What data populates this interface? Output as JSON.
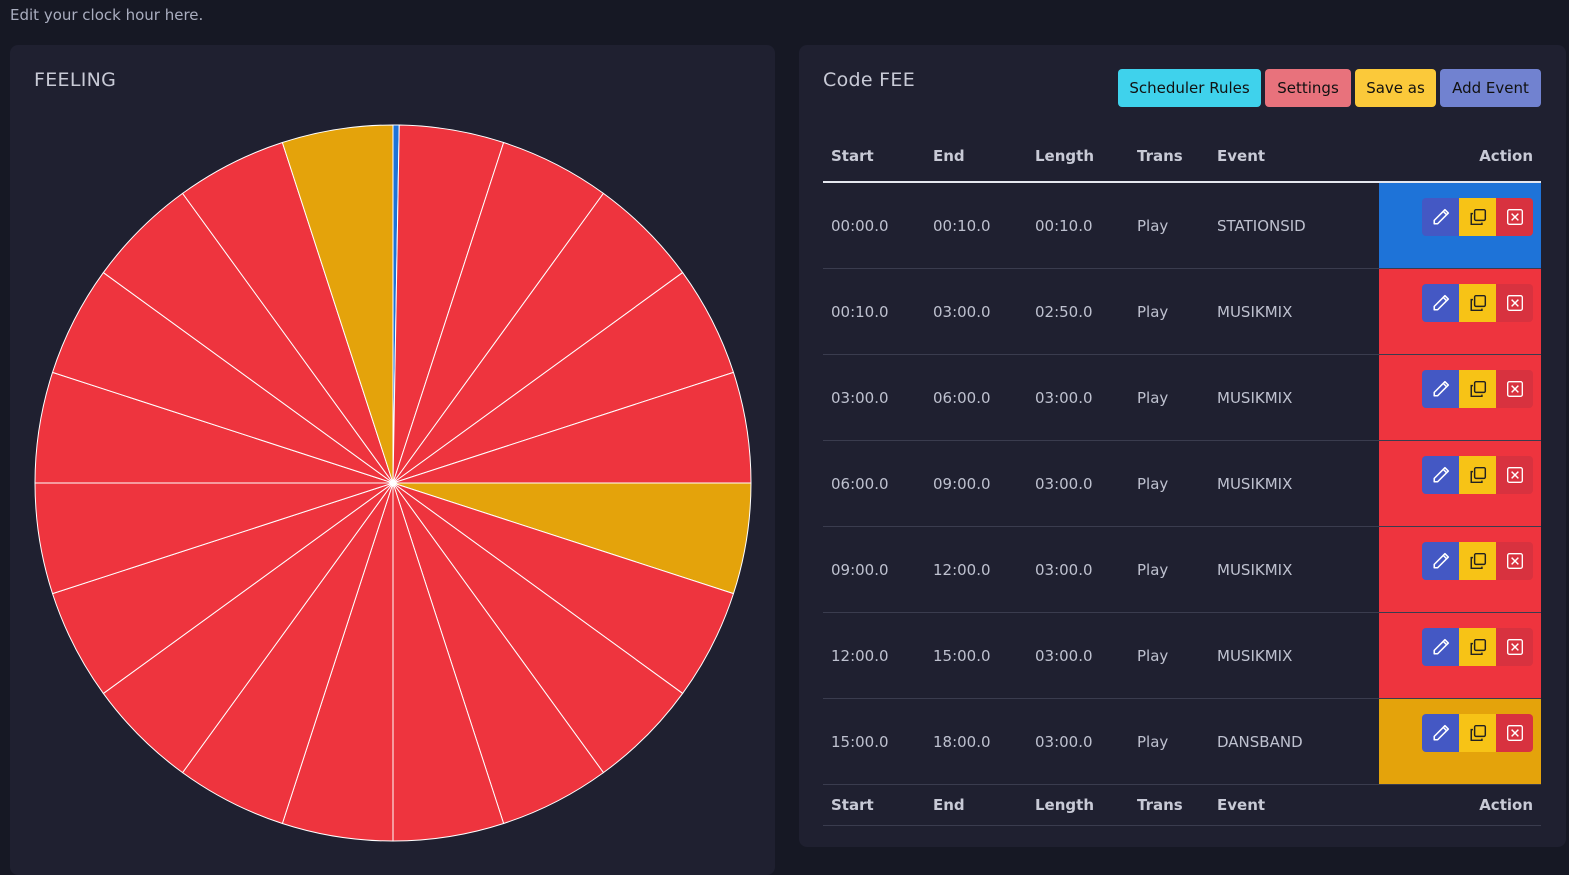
{
  "page": {
    "hint": "Edit your clock hour here."
  },
  "clock": {
    "title": "FEELING",
    "chart_data": {
      "type": "pie",
      "title": "FEELING",
      "unit": "seconds",
      "slices": [
        {
          "label": "STATIONSID",
          "start": 0,
          "length": 10,
          "color": "#1e73d8"
        },
        {
          "label": "MUSIKMIX",
          "start": 10,
          "length": 170,
          "color": "#ee343e"
        },
        {
          "label": "MUSIKMIX",
          "start": 180,
          "length": 180,
          "color": "#ee343e"
        },
        {
          "label": "MUSIKMIX",
          "start": 360,
          "length": 180,
          "color": "#ee343e"
        },
        {
          "label": "MUSIKMIX",
          "start": 540,
          "length": 180,
          "color": "#ee343e"
        },
        {
          "label": "MUSIKMIX",
          "start": 720,
          "length": 180,
          "color": "#ee343e"
        },
        {
          "label": "DANSBAND",
          "start": 900,
          "length": 180,
          "color": "#e4a30b"
        },
        {
          "label": "MUSIKMIX",
          "start": 1080,
          "length": 180,
          "color": "#ee343e"
        },
        {
          "label": "MUSIKMIX",
          "start": 1260,
          "length": 180,
          "color": "#ee343e"
        },
        {
          "label": "MUSIKMIX",
          "start": 1440,
          "length": 180,
          "color": "#ee343e"
        },
        {
          "label": "MUSIKMIX",
          "start": 1620,
          "length": 180,
          "color": "#ee343e"
        },
        {
          "label": "MUSIKMIX",
          "start": 1800,
          "length": 180,
          "color": "#ee343e"
        },
        {
          "label": "MUSIKMIX",
          "start": 1980,
          "length": 180,
          "color": "#ee343e"
        },
        {
          "label": "MUSIKMIX",
          "start": 2160,
          "length": 180,
          "color": "#ee343e"
        },
        {
          "label": "MUSIKMIX",
          "start": 2340,
          "length": 180,
          "color": "#ee343e"
        },
        {
          "label": "MUSIKMIX",
          "start": 2520,
          "length": 180,
          "color": "#ee343e"
        },
        {
          "label": "MUSIKMIX",
          "start": 2700,
          "length": 180,
          "color": "#ee343e"
        },
        {
          "label": "MUSIKMIX",
          "start": 2880,
          "length": 180,
          "color": "#ee343e"
        },
        {
          "label": "MUSIKMIX",
          "start": 3060,
          "length": 180,
          "color": "#ee343e"
        },
        {
          "label": "MUSIKMIX",
          "start": 3240,
          "length": 180,
          "color": "#ee343e"
        },
        {
          "label": "DANSBAND",
          "start": 3420,
          "length": 180,
          "color": "#e4a30b"
        }
      ]
    }
  },
  "editor": {
    "title": "Code FEE",
    "buttons": {
      "rules": "Scheduler Rules",
      "settings": "Settings",
      "save_as": "Save as",
      "add_event": "Add Event"
    },
    "columns": [
      "Start",
      "End",
      "Length",
      "Trans",
      "Event",
      "Action"
    ],
    "rows": [
      {
        "start": "00:00.0",
        "end": "00:10.0",
        "length": "00:10.0",
        "trans": "Play",
        "event": "STATIONSID",
        "color": "#1e73d8"
      },
      {
        "start": "00:10.0",
        "end": "03:00.0",
        "length": "02:50.0",
        "trans": "Play",
        "event": "MUSIKMIX",
        "color": "#ee343e"
      },
      {
        "start": "03:00.0",
        "end": "06:00.0",
        "length": "03:00.0",
        "trans": "Play",
        "event": "MUSIKMIX",
        "color": "#ee343e"
      },
      {
        "start": "06:00.0",
        "end": "09:00.0",
        "length": "03:00.0",
        "trans": "Play",
        "event": "MUSIKMIX",
        "color": "#ee343e"
      },
      {
        "start": "09:00.0",
        "end": "12:00.0",
        "length": "03:00.0",
        "trans": "Play",
        "event": "MUSIKMIX",
        "color": "#ee343e"
      },
      {
        "start": "12:00.0",
        "end": "15:00.0",
        "length": "03:00.0",
        "trans": "Play",
        "event": "MUSIKMIX",
        "color": "#ee343e"
      },
      {
        "start": "15:00.0",
        "end": "18:00.0",
        "length": "03:00.0",
        "trans": "Play",
        "event": "DANSBAND",
        "color": "#e4a30b"
      }
    ],
    "row_action_icons": [
      "pencil-icon",
      "copy-icon",
      "close-icon"
    ]
  }
}
